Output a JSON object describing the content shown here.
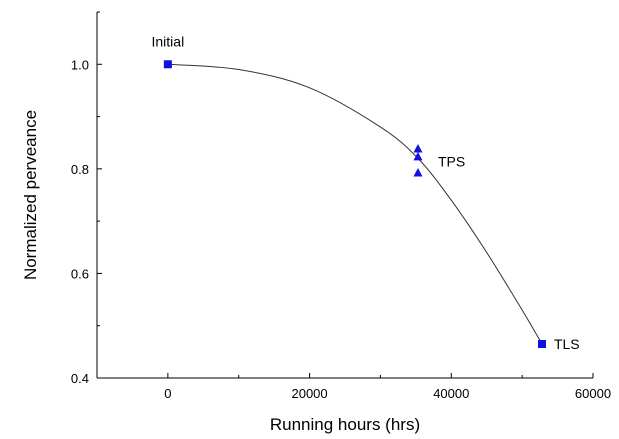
{
  "chart_data": {
    "type": "scatter",
    "xlabel": "Running hours (hrs)",
    "ylabel": "Normalized perveance",
    "xlim": [
      -10000,
      60000
    ],
    "ylim": [
      0.4,
      1.1
    ],
    "x_ticks": [
      0,
      20000,
      40000,
      60000
    ],
    "y_ticks": [
      0.4,
      0.6,
      0.8,
      1.0
    ],
    "x_tick_labels": [
      "0",
      "20000",
      "40000",
      "60000"
    ],
    "y_tick_labels": [
      "0.4",
      "0.6",
      "0.8",
      "1.0"
    ],
    "grid": false,
    "legend": "none",
    "series": [
      {
        "marker": "square",
        "color": "#1010e0",
        "points": [
          {
            "x": 0,
            "y": 1.0
          },
          {
            "x": 52800,
            "y": 0.465
          }
        ]
      },
      {
        "marker": "triangle",
        "color": "#1010e0",
        "points": [
          {
            "x": 35300,
            "y": 0.838
          },
          {
            "x": 35300,
            "y": 0.823
          },
          {
            "x": 35300,
            "y": 0.792
          }
        ]
      }
    ],
    "fit_curve": {
      "color": "#333333",
      "points": [
        {
          "x": 0,
          "y": 1.0
        },
        {
          "x": 10000,
          "y": 0.99
        },
        {
          "x": 20000,
          "y": 0.955
        },
        {
          "x": 30000,
          "y": 0.88
        },
        {
          "x": 35300,
          "y": 0.82
        },
        {
          "x": 40000,
          "y": 0.74
        },
        {
          "x": 45000,
          "y": 0.64
        },
        {
          "x": 50000,
          "y": 0.53
        },
        {
          "x": 52800,
          "y": 0.465
        }
      ]
    },
    "annotations": [
      {
        "text": "Initial",
        "x": 0,
        "y": 1.0
      },
      {
        "text": "TPS",
        "x": 35300,
        "y": 0.82
      },
      {
        "text": "TLS",
        "x": 52800,
        "y": 0.465
      }
    ]
  }
}
